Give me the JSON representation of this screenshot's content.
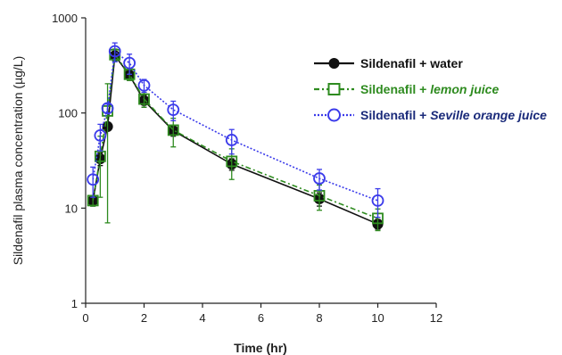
{
  "chart_data": {
    "type": "line",
    "title": "",
    "xlabel": "Time (hr)",
    "ylabel": "Sildenafil plasma concentration (µg/L)",
    "xlim": [
      0,
      12
    ],
    "ylim": [
      1,
      1000
    ],
    "yscale": "log",
    "xticks": [
      0,
      2,
      4,
      6,
      8,
      10,
      12
    ],
    "yticks": [
      1,
      10,
      100,
      1000
    ],
    "grid": false,
    "legend_position": "top-right",
    "series": [
      {
        "name": "Sildenafil + water",
        "color": "#111111",
        "marker": "filled-circle",
        "linestyle": "solid",
        "x": [
          0.25,
          0.5,
          0.75,
          1,
          1.5,
          2,
          3,
          5,
          8,
          10
        ],
        "y": [
          12,
          33,
          72,
          400,
          250,
          135,
          65,
          29,
          12.5,
          6.8
        ],
        "error": [
          1.5,
          5,
          6,
          40,
          30,
          20,
          8,
          4,
          2,
          0.8
        ]
      },
      {
        "name_prefix": "Sildenafil + ",
        "name_italic": "lemon juice",
        "color": "#2e8b1f",
        "marker": "open-square",
        "linestyle": "dash-dot",
        "x": [
          0.25,
          0.5,
          0.75,
          1,
          1.5,
          2,
          3,
          5,
          8,
          10
        ],
        "y": [
          12,
          35,
          105,
          410,
          255,
          140,
          66,
          31,
          13.5,
          7.8
        ],
        "error": [
          1.5,
          22,
          98,
          60,
          35,
          25,
          22,
          11,
          4,
          2
        ]
      },
      {
        "name_prefix": "Sildenafil + ",
        "name_italic": "Seville orange juice",
        "color": "#3b3bea",
        "marker": "open-circle",
        "linestyle": "dotted",
        "x": [
          0.25,
          0.5,
          0.75,
          1,
          1.5,
          2,
          3,
          5,
          8,
          10
        ],
        "y": [
          20,
          58,
          112,
          445,
          335,
          195,
          108,
          52,
          20.5,
          12
        ],
        "error": [
          7,
          18,
          12,
          100,
          80,
          30,
          25,
          15,
          5,
          4
        ]
      }
    ]
  }
}
